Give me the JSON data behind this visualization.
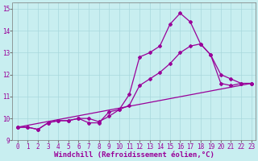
{
  "xlabel": "Windchill (Refroidissement éolien,°C)",
  "bg_color": "#c8eef0",
  "line_color": "#990099",
  "xlim": [
    -0.5,
    23.4
  ],
  "ylim": [
    9,
    15.3
  ],
  "xticks": [
    0,
    1,
    2,
    3,
    4,
    5,
    6,
    7,
    8,
    9,
    10,
    11,
    12,
    13,
    14,
    15,
    16,
    17,
    18,
    19,
    20,
    21,
    22,
    23
  ],
  "yticks": [
    9,
    10,
    11,
    12,
    13,
    14,
    15
  ],
  "line1_x": [
    0,
    1,
    2,
    3,
    4,
    5,
    6,
    7,
    8,
    9,
    10,
    11,
    12,
    13,
    14,
    15,
    16,
    17,
    18,
    19,
    20,
    21,
    22,
    23
  ],
  "line1_y": [
    9.6,
    9.6,
    9.5,
    9.8,
    9.9,
    9.9,
    10.0,
    9.8,
    9.8,
    10.3,
    10.4,
    11.1,
    12.8,
    13.0,
    13.3,
    14.3,
    14.8,
    14.4,
    13.4,
    12.9,
    11.6,
    11.5,
    11.6,
    11.6
  ],
  "line2_x": [
    0,
    1,
    2,
    3,
    4,
    5,
    6,
    7,
    8,
    9,
    10,
    11,
    12,
    13,
    14,
    15,
    16,
    17,
    18,
    19,
    20,
    21,
    22,
    23
  ],
  "line2_y": [
    9.6,
    9.6,
    9.5,
    9.8,
    9.9,
    9.9,
    10.0,
    10.0,
    9.85,
    10.1,
    10.4,
    10.6,
    11.5,
    11.8,
    12.1,
    12.5,
    13.0,
    13.3,
    13.4,
    12.9,
    12.0,
    11.8,
    11.6,
    11.6
  ],
  "line3_x": [
    0,
    23
  ],
  "line3_y": [
    9.6,
    11.6
  ],
  "marker": "D",
  "marker_size": 2,
  "line_width": 0.9,
  "xlabel_fontsize": 6.5,
  "tick_fontsize": 5.5,
  "grid_color": "#a8d8dc"
}
